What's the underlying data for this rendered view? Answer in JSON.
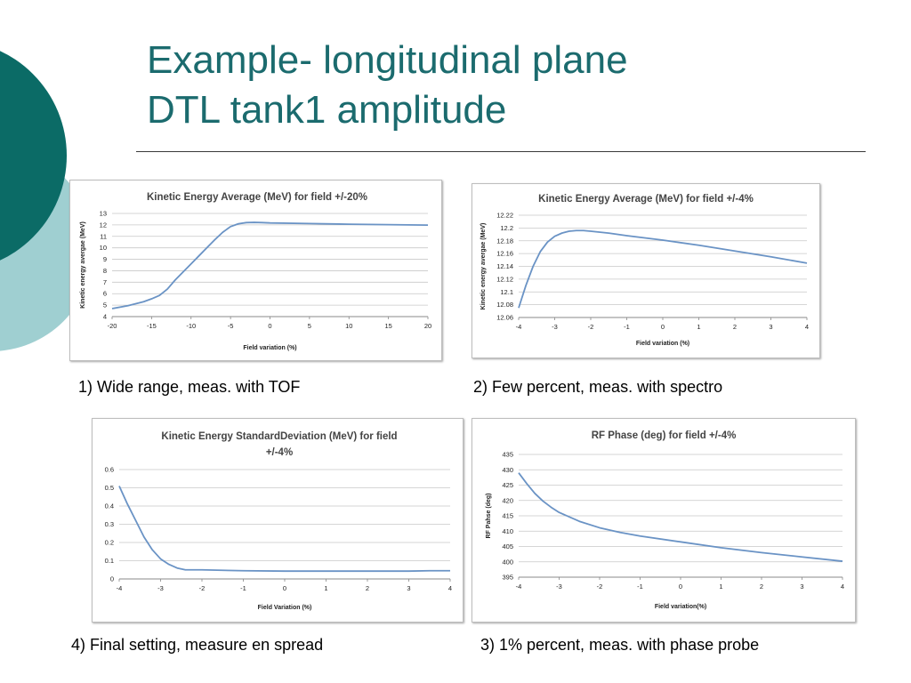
{
  "slide": {
    "title_lines": [
      "Example- longitudinal plane",
      "DTL tank1 amplitude"
    ],
    "accent_dark": "#0b6b66",
    "accent_light": "#9fcfd1",
    "title_color": "#1b6b6e"
  },
  "captions": {
    "c1": "1) Wide range, meas. with TOF",
    "c2": "2) Few percent, meas. with spectro",
    "c3": "3) 1% percent, meas. with phase probe",
    "c4": "4) Final setting, measure en spread"
  },
  "chart_data": [
    {
      "type": "line",
      "title": "Kinetic Energy Average (MeV) for field +/-20%",
      "xlabel": "Field variation (%)",
      "ylabel": "Kinetic energy avergae (MeV)",
      "xlim": [
        -20,
        20
      ],
      "ylim": [
        4,
        13
      ],
      "xticks": [
        -20,
        -15,
        -10,
        -5,
        0,
        5,
        10,
        15,
        20
      ],
      "yticks": [
        4,
        5,
        6,
        7,
        8,
        9,
        10,
        11,
        12,
        13
      ],
      "grid": true,
      "line_color": "#6a93c5",
      "x": [
        -20,
        -18,
        -16,
        -15,
        -14,
        -13,
        -12,
        -11,
        -10,
        -9,
        -8,
        -7,
        -6,
        -5,
        -4,
        -3,
        -2,
        -1,
        0,
        5,
        10,
        15,
        20
      ],
      "y": [
        4.7,
        4.95,
        5.3,
        5.55,
        5.85,
        6.4,
        7.2,
        7.9,
        8.6,
        9.3,
        10.0,
        10.7,
        11.35,
        11.85,
        12.1,
        12.2,
        12.22,
        12.2,
        12.17,
        12.12,
        12.06,
        12.02,
        11.98
      ]
    },
    {
      "type": "line",
      "title": "Kinetic Energy Average (MeV) for field +/-4%",
      "xlabel": "Field variation (%)",
      "ylabel": "Kinetic energy avergae (MeV)",
      "xlim": [
        -4,
        4
      ],
      "ylim": [
        12.06,
        12.22
      ],
      "xticks": [
        -4,
        -3,
        -2,
        -1,
        0,
        1,
        2,
        3,
        4
      ],
      "yticks": [
        "12.06",
        "12.08",
        "12.1",
        "12.12",
        "12.14",
        "12.16",
        "12.18",
        "12.2",
        "12.22"
      ],
      "grid": true,
      "line_color": "#6a93c5",
      "x": [
        -4,
        -3.8,
        -3.6,
        -3.4,
        -3.2,
        -3.0,
        -2.8,
        -2.6,
        -2.4,
        -2.2,
        -2.0,
        -1.5,
        -1,
        0,
        1,
        2,
        3,
        4
      ],
      "y": [
        12.075,
        12.11,
        12.14,
        12.163,
        12.178,
        12.187,
        12.192,
        12.195,
        12.196,
        12.196,
        12.195,
        12.192,
        12.188,
        12.181,
        12.173,
        12.164,
        12.155,
        12.145
      ]
    },
    {
      "type": "line",
      "title": "RF Phase (deg) for field +/-4%",
      "xlabel": "Field variation(%)",
      "ylabel": "RF Pahse (deg)",
      "xlim": [
        -4,
        4
      ],
      "ylim": [
        395,
        435
      ],
      "xticks": [
        -4,
        -3,
        -2,
        -1,
        0,
        1,
        2,
        3,
        4
      ],
      "yticks": [
        395,
        400,
        405,
        410,
        415,
        420,
        425,
        430,
        435
      ],
      "grid": true,
      "line_color": "#6a93c5",
      "x": [
        -4,
        -3.8,
        -3.6,
        -3.4,
        -3.2,
        -3.0,
        -2.5,
        -2.0,
        -1.5,
        -1,
        0,
        1,
        2,
        3,
        4
      ],
      "y": [
        429,
        425.5,
        422.3,
        419.8,
        417.8,
        416.1,
        413.2,
        411.1,
        409.6,
        408.4,
        406.5,
        404.6,
        403.0,
        401.6,
        400.2
      ]
    },
    {
      "type": "line",
      "title": "Kinetic Energy StandardDeviation (MeV) for field +/-4%",
      "xlabel": "Field Variation (%)",
      "ylabel": "",
      "xlim": [
        -4,
        4
      ],
      "ylim": [
        0,
        0.6
      ],
      "xticks": [
        -4,
        -3,
        -2,
        -1,
        0,
        1,
        2,
        3,
        4
      ],
      "yticks": [
        0,
        0.1,
        0.2,
        0.3,
        0.4,
        0.5,
        0.6
      ],
      "grid": true,
      "line_color": "#6a93c5",
      "x": [
        -4,
        -3.8,
        -3.6,
        -3.4,
        -3.2,
        -3.0,
        -2.8,
        -2.6,
        -2.4,
        -2.0,
        -1.0,
        0,
        1,
        2,
        3,
        3.5,
        4
      ],
      "y": [
        0.51,
        0.41,
        0.32,
        0.23,
        0.16,
        0.11,
        0.08,
        0.06,
        0.05,
        0.05,
        0.045,
        0.043,
        0.043,
        0.043,
        0.043,
        0.045,
        0.045
      ]
    }
  ]
}
